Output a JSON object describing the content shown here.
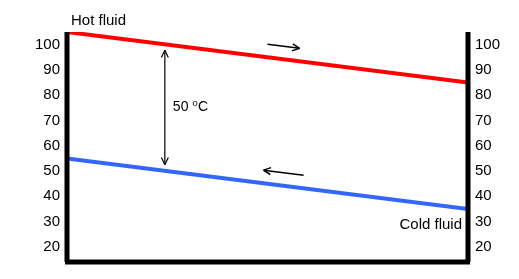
{
  "chart_data": {
    "type": "line",
    "annotation": "50 ⁰C",
    "x": [
      0,
      1
    ],
    "xlim": [
      0,
      1
    ],
    "series": [
      {
        "name": "Hot fluid",
        "color": "#ff0000",
        "values": [
          105,
          85
        ]
      },
      {
        "name": "Cold fluid",
        "color": "#3366ff",
        "values": [
          55,
          35
        ]
      }
    ],
    "ylim": [
      14,
      105
    ],
    "yticks": [
      20,
      30,
      40,
      50,
      60,
      70,
      80,
      90,
      100
    ],
    "y2lim": [
      14,
      105
    ],
    "y2ticks": [
      20,
      30,
      40,
      50,
      60,
      70,
      80,
      90,
      100
    ],
    "grid": false,
    "tick_labels": "y"
  }
}
